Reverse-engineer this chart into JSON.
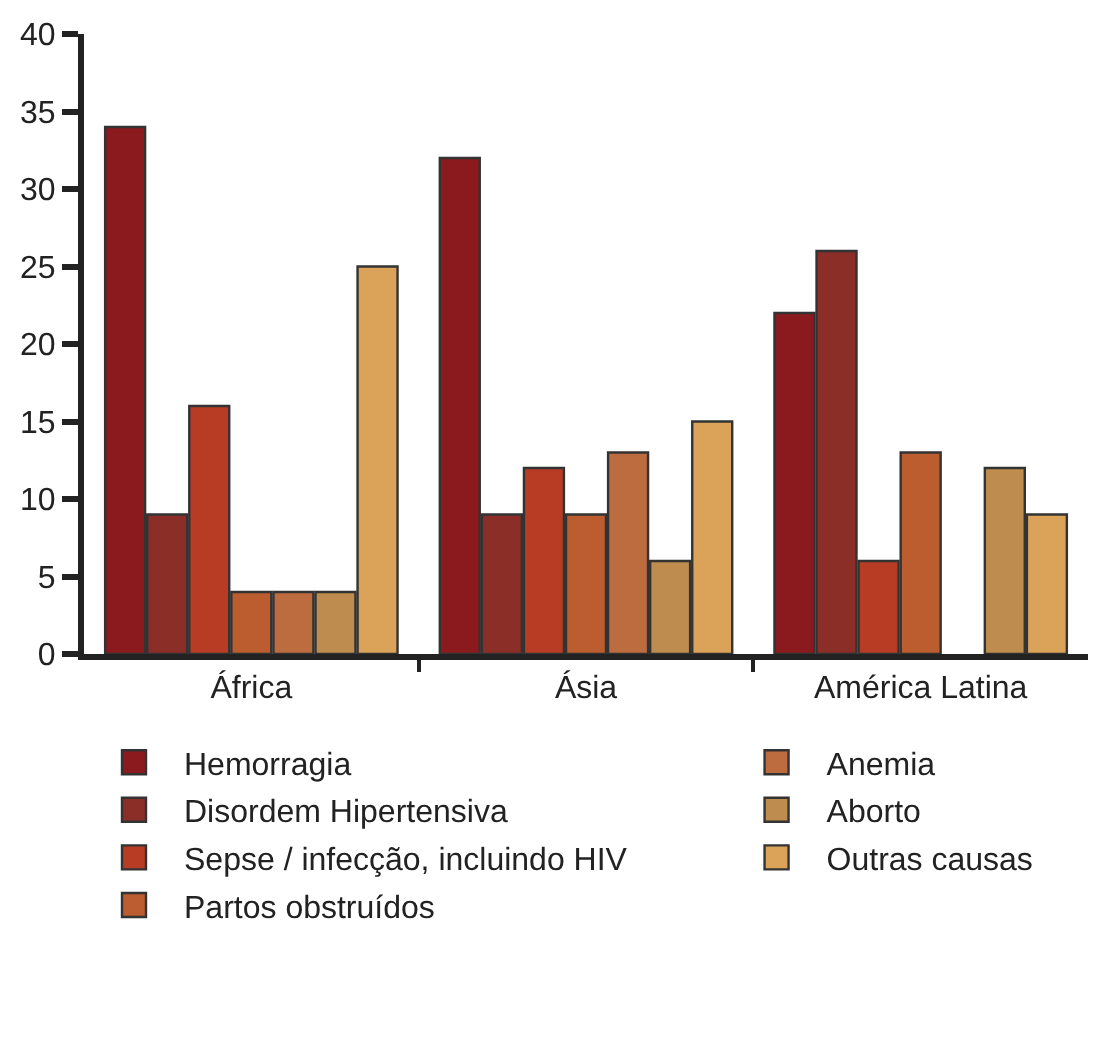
{
  "chart_data": {
    "type": "bar",
    "categories": [
      "África",
      "Ásia",
      "América Latina"
    ],
    "series": [
      {
        "name": "Hemorragia",
        "color": "#8b1a1e",
        "values": [
          34,
          32,
          22
        ]
      },
      {
        "name": "Disordem Hipertensiva",
        "color": "#8b2e28",
        "values": [
          9,
          9,
          26
        ]
      },
      {
        "name": "Sepse / infecção, incluindo HIV",
        "color": "#b83c24",
        "values": [
          16,
          12,
          6
        ]
      },
      {
        "name": "Partos obstruídos",
        "color": "#bb5d2e",
        "values": [
          4,
          9,
          13
        ]
      },
      {
        "name": "Anemia",
        "color": "#bd6c40",
        "values": [
          4,
          13,
          null
        ]
      },
      {
        "name": "Aborto",
        "color": "#bd8c4e",
        "values": [
          4,
          6,
          12
        ]
      },
      {
        "name": "Outras causas",
        "color": "#dba35a",
        "values": [
          25,
          15,
          9
        ]
      }
    ],
    "ylim": [
      0,
      40
    ],
    "yticks": [
      0,
      5,
      10,
      15,
      20,
      25,
      30,
      35,
      40
    ],
    "legend": "bottom"
  }
}
